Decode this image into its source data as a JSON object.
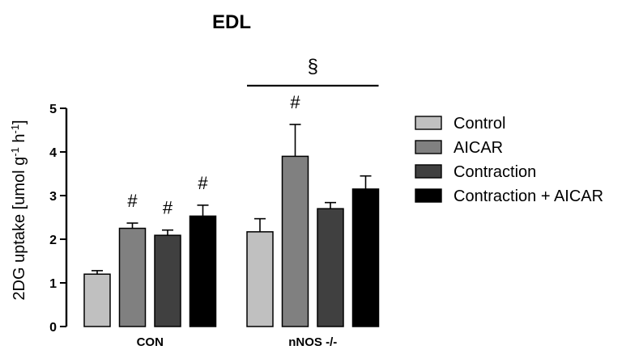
{
  "chart_data": {
    "type": "bar",
    "title": "EDL",
    "ylabel": "2DG uptake [umol g-1 h-1]",
    "ylabel_parts": {
      "base": "2DG uptake [umol g",
      "sup1": "-1",
      "mid": " h",
      "sup2": "-1",
      "end": "]"
    },
    "xlabel": "",
    "ylim": [
      0,
      5
    ],
    "yticks": [
      "0",
      "1",
      "2",
      "3",
      "4",
      "5"
    ],
    "categories": [
      "CON",
      "nNOS -/-"
    ],
    "series": [
      {
        "name": "Control",
        "color": "#c0c0c0",
        "values": [
          1.2,
          2.17
        ],
        "errors": [
          0.08,
          0.3
        ],
        "marks": [
          "",
          ""
        ]
      },
      {
        "name": "AICAR",
        "color": "#808080",
        "values": [
          2.25,
          3.9
        ],
        "errors": [
          0.12,
          0.73
        ],
        "marks": [
          "#",
          "#"
        ]
      },
      {
        "name": "Contraction",
        "color": "#404040",
        "values": [
          2.09,
          2.7
        ],
        "errors": [
          0.12,
          0.14
        ],
        "marks": [
          "#",
          ""
        ]
      },
      {
        "name": "Contraction + AICAR",
        "color": "#000000",
        "values": [
          2.53,
          3.15
        ],
        "errors": [
          0.25,
          0.3
        ],
        "marks": [
          "#",
          ""
        ]
      }
    ],
    "group_annotation": {
      "symbol": "§",
      "category": "nNOS -/-"
    },
    "legend_position": "right",
    "grid": false
  }
}
